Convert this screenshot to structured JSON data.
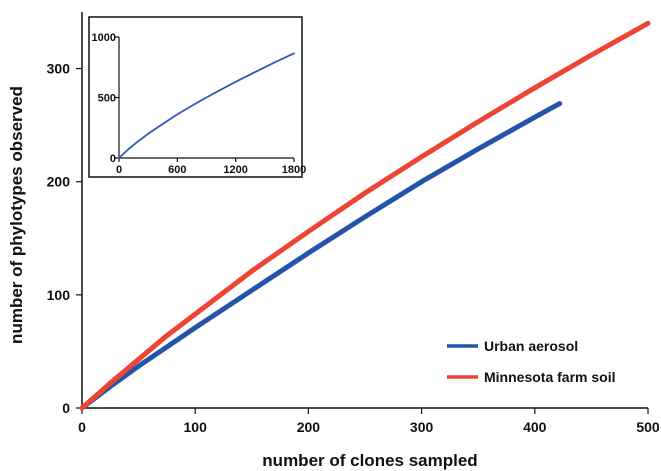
{
  "chart_data": [
    {
      "type": "line",
      "title": "",
      "xlabel": "number of clones sampled",
      "ylabel": "number of phylotypes observed",
      "xlim": [
        0,
        500
      ],
      "ylim": [
        0,
        350
      ],
      "x_ticks": [
        "0",
        "100",
        "200",
        "300",
        "400",
        "500"
      ],
      "y_ticks": [
        "0",
        "100",
        "200",
        "300"
      ],
      "x_tick_values": [
        0,
        100,
        200,
        300,
        400,
        500
      ],
      "y_tick_values": [
        0,
        100,
        200,
        300
      ],
      "grid": false,
      "legend_position": "bottom-right",
      "series": [
        {
          "name": "Urban aerosol",
          "color": "#2255aa",
          "x": [
            0,
            25,
            50,
            75,
            100,
            150,
            200,
            250,
            300,
            350,
            400,
            422
          ],
          "y": [
            0,
            19,
            37,
            54,
            71,
            104,
            137,
            169,
            200,
            229,
            257,
            269
          ]
        },
        {
          "name": "Minnesota farm soil",
          "color": "#ee4433",
          "x": [
            0,
            25,
            50,
            75,
            100,
            150,
            200,
            250,
            300,
            350,
            400,
            450,
            500
          ],
          "y": [
            0,
            22,
            43,
            64,
            83,
            121,
            156,
            190,
            222,
            253,
            283,
            312,
            340
          ]
        }
      ]
    },
    {
      "type": "line",
      "title": "",
      "xlim": [
        0,
        1800
      ],
      "ylim": [
        0,
        1000
      ],
      "x_ticks": [
        "0",
        "600",
        "1200",
        "1800"
      ],
      "y_ticks": [
        "0",
        "500",
        "1000"
      ],
      "x_tick_values": [
        0,
        600,
        1200,
        1800
      ],
      "y_tick_values": [
        0,
        500,
        1000
      ],
      "grid": false,
      "series": [
        {
          "color": "#3355bb",
          "x": [
            0,
            100,
            200,
            300,
            400,
            600,
            800,
            1000,
            1200,
            1400,
            1600,
            1800
          ],
          "y": [
            0,
            75,
            140,
            200,
            255,
            360,
            455,
            545,
            630,
            710,
            790,
            865
          ]
        }
      ]
    }
  ]
}
